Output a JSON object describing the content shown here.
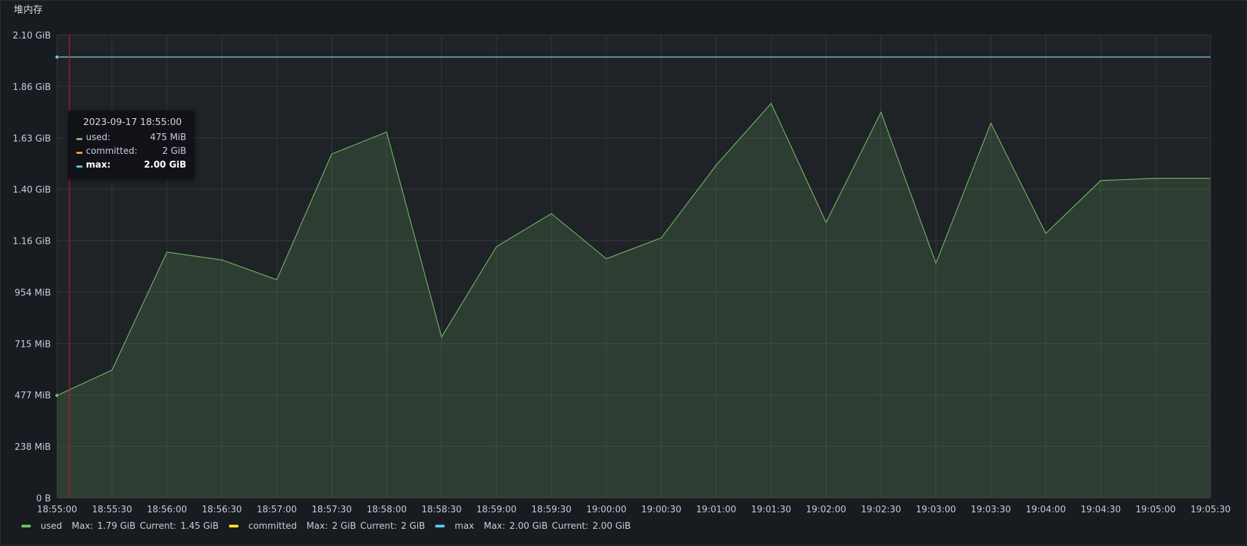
{
  "panel": {
    "title": "堆内存"
  },
  "chart_data": {
    "type": "line",
    "x_labels": [
      "18:55:00",
      "18:55:30",
      "18:56:00",
      "18:56:30",
      "18:57:00",
      "18:57:30",
      "18:58:00",
      "18:58:30",
      "18:59:00",
      "18:59:30",
      "19:00:00",
      "19:00:30",
      "19:01:00",
      "19:01:30",
      "19:02:00",
      "19:02:30",
      "19:03:00",
      "19:03:30",
      "19:04:00",
      "19:04:30",
      "19:05:00",
      "19:05:30"
    ],
    "y_ticks": [
      {
        "label": "0 B",
        "value": 0
      },
      {
        "label": "238 MiB",
        "value": 0.2333
      },
      {
        "label": "477 MiB",
        "value": 0.4667
      },
      {
        "label": "715 MiB",
        "value": 0.7
      },
      {
        "label": "954 MiB",
        "value": 0.9333
      },
      {
        "label": "1.16 GiB",
        "value": 1.1667
      },
      {
        "label": "1.40 GiB",
        "value": 1.4
      },
      {
        "label": "1.63 GiB",
        "value": 1.6333
      },
      {
        "label": "1.86 GiB",
        "value": 1.8667
      },
      {
        "label": "2.10 GiB",
        "value": 2.1
      }
    ],
    "ylim": [
      0,
      2.1
    ],
    "y_unit": "GiB",
    "series": [
      {
        "name": "used",
        "color": "#73bf69",
        "fill": true,
        "values": [
          0.465,
          0.58,
          1.115,
          1.08,
          0.99,
          1.56,
          1.66,
          0.73,
          1.14,
          1.29,
          1.085,
          1.18,
          1.51,
          1.79,
          1.25,
          1.75,
          1.065,
          1.7,
          1.2,
          1.44,
          1.45,
          1.45
        ]
      },
      {
        "name": "committed",
        "color": "#fade2a",
        "fill": false,
        "values": [
          2,
          2,
          2,
          2,
          2,
          2,
          2,
          2,
          2,
          2,
          2,
          2,
          2,
          2,
          2,
          2,
          2,
          2,
          2,
          2,
          2,
          2
        ]
      },
      {
        "name": "max",
        "color": "#8ab8ff",
        "fill": false,
        "values": [
          2,
          2,
          2,
          2,
          2,
          2,
          2,
          2,
          2,
          2,
          2,
          2,
          2,
          2,
          2,
          2,
          2,
          2,
          2,
          2,
          2,
          2
        ]
      }
    ],
    "grid": true,
    "legend_position": "bottom"
  },
  "tooltip": {
    "time": "2023-09-17 18:55:00",
    "rows": [
      {
        "name": "used:",
        "value": "475 MiB",
        "color": "#73bf69"
      },
      {
        "name": "committed:",
        "value": "2 GiB",
        "color": "#ff9830"
      },
      {
        "name": "max:",
        "value": "2.00 GiB",
        "color": "#5ac8e6"
      }
    ]
  },
  "legend": [
    {
      "name": "used",
      "color": "#73bf69",
      "max_label": "Max:",
      "max": "1.79 GiB",
      "current_label": "Current:",
      "current": "1.45 GiB"
    },
    {
      "name": "committed",
      "color": "#fade2a",
      "max_label": "Max:",
      "max": "2 GiB",
      "current_label": "Current:",
      "current": "2 GiB"
    },
    {
      "name": "max",
      "color": "#5ac8e6",
      "max_label": "Max:",
      "max": "2.00 GiB",
      "current_label": "Current:",
      "current": "2.00 GiB"
    }
  ]
}
